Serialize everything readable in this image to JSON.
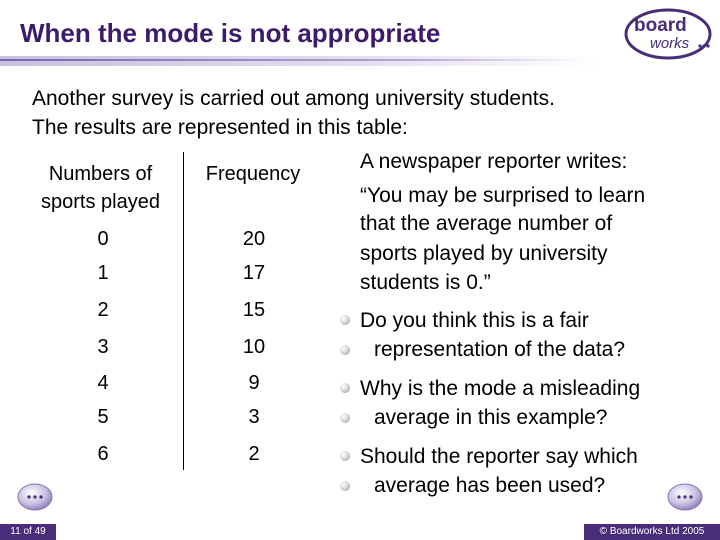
{
  "slide": {
    "title": "When the mode is not appropriate",
    "logo_text_top": "board",
    "logo_text_bottom": "works"
  },
  "intro": {
    "line1": "Another survey is carried out among university students.",
    "line2": "The results are represented in this table:"
  },
  "table": {
    "header_num_line1": "Numbers of",
    "header_num_line2": "sports played",
    "header_freq": "Frequency",
    "rows": [
      {
        "sports": "0",
        "frequency": "20"
      },
      {
        "sports": "1",
        "frequency": "17"
      },
      {
        "sports": "2",
        "frequency": "15"
      },
      {
        "sports": "3",
        "frequency": "10"
      },
      {
        "sports": "4",
        "frequency": "9"
      },
      {
        "sports": "5",
        "frequency": "3"
      },
      {
        "sports": "6",
        "frequency": "2"
      }
    ]
  },
  "quote": {
    "lines": [
      "A newspaper reporter writes:",
      "“You may be surprised to learn",
      "that the average number of",
      "sports played by university",
      "students is 0.”"
    ]
  },
  "questions": [
    {
      "line1": "Do you think this is a fair",
      "line2": "representation of the data?"
    },
    {
      "line1": "Why is the mode a misleading",
      "line2": "average in this example?"
    },
    {
      "line1": "Should the reporter say which",
      "line2": "average has been used?"
    }
  ],
  "footer": {
    "page_number": "11 of 49",
    "copyright": "© Boardworks Ltd 2005"
  },
  "colors": {
    "title": "#3c1b6b",
    "footer_bar": "#4a2d7a"
  }
}
